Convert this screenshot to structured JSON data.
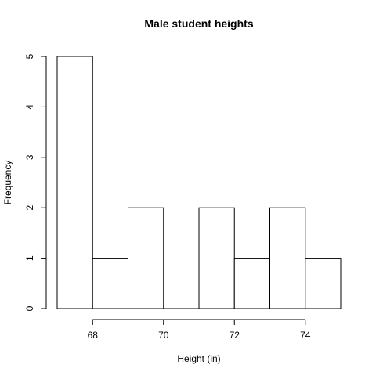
{
  "chart_data": {
    "type": "bar",
    "title": "Male student heights",
    "xlabel": "Height (in)",
    "ylabel": "Frequency",
    "bins": [
      {
        "start": 67,
        "end": 68,
        "count": 5
      },
      {
        "start": 68,
        "end": 69,
        "count": 1
      },
      {
        "start": 69,
        "end": 70,
        "count": 2
      },
      {
        "start": 70,
        "end": 71,
        "count": 0
      },
      {
        "start": 71,
        "end": 72,
        "count": 2
      },
      {
        "start": 72,
        "end": 73,
        "count": 1
      },
      {
        "start": 73,
        "end": 74,
        "count": 2
      },
      {
        "start": 74,
        "end": 75,
        "count": 1
      }
    ],
    "xticks": [
      68,
      70,
      72,
      74
    ],
    "yticks": [
      0,
      1,
      2,
      3,
      4,
      5
    ],
    "xlim": [
      67,
      75
    ],
    "ylim": [
      0,
      5
    ],
    "grid": false,
    "legend": "none"
  }
}
